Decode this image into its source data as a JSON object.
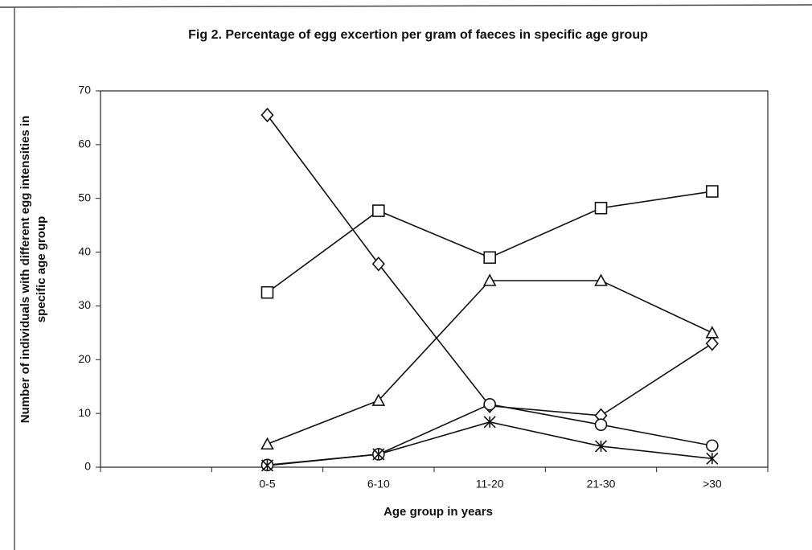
{
  "chart_data": {
    "type": "line",
    "title": "Fig 2. Percentage of egg excertion per gram of faeces in specific age group",
    "xlabel": "Age group in years",
    "ylabel": [
      "Number of individuals with different egg intensities in",
      "specific age group"
    ],
    "categories": [
      null,
      "0-5",
      "6-10",
      "11-20",
      "21-30",
      ">30"
    ],
    "ylim": [
      0,
      70
    ],
    "yticks": [
      0,
      10,
      20,
      30,
      40,
      50,
      60,
      70
    ],
    "grid": false,
    "series": [
      {
        "color": "#111111",
        "marker": "diamond",
        "values": [
          null,
          65.5,
          37.8,
          11.4,
          9.6,
          23
        ]
      },
      {
        "color": "#111111",
        "marker": "square",
        "values": [
          null,
          32.5,
          47.7,
          39,
          48.2,
          51.3
        ]
      },
      {
        "color": "#111111",
        "marker": "triangle",
        "values": [
          null,
          4.3,
          12.4,
          34.7,
          34.7,
          25
        ]
      },
      {
        "color": "#111111",
        "marker": "circle",
        "values": [
          null,
          0.4,
          2.4,
          11.7,
          7.9,
          4
        ]
      },
      {
        "color": "#111111",
        "marker": "star",
        "values": [
          null,
          0.3,
          2.4,
          8.4,
          3.9,
          1.6
        ]
      }
    ]
  }
}
